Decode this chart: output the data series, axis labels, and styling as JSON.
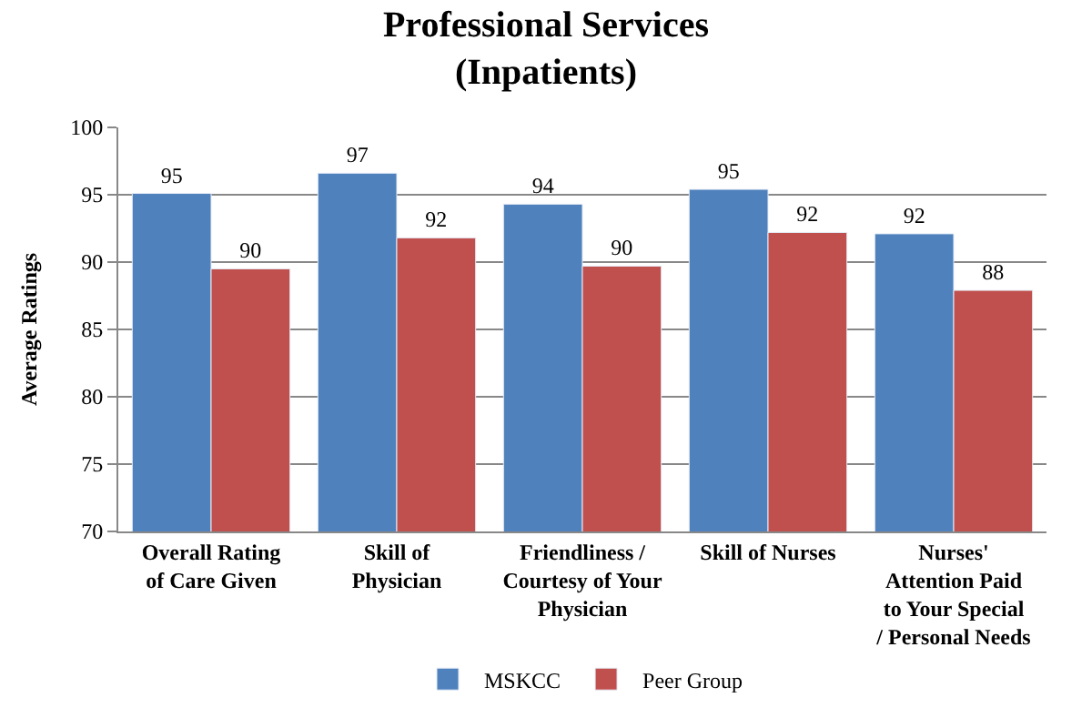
{
  "chart_data": {
    "type": "bar",
    "title": "Professional Services\n(Inpatients)",
    "ylabel": "Average Ratings",
    "categories": [
      "Overall Rating of Care Given",
      "Skill of Physician",
      "Friendliness / Courtesy of Your Physician",
      "Skill of Nurses",
      "Nurses' Attention Paid to Your Special / Personal Needs"
    ],
    "series": [
      {
        "name": "MSKCC",
        "color": "#4f81bd",
        "values": [
          95.1,
          96.6,
          94.3,
          95.4,
          92.1
        ],
        "value_labels": [
          "95",
          "97",
          "94",
          "95",
          "92"
        ]
      },
      {
        "name": "Peer Group",
        "color": "#c0504d",
        "values": [
          89.5,
          91.8,
          89.7,
          92.2,
          87.9
        ],
        "value_labels": [
          "90",
          "92",
          "90",
          "92",
          "88"
        ]
      }
    ],
    "ylim": [
      70,
      100
    ],
    "yticks": [
      70,
      75,
      80,
      85,
      90,
      95,
      100
    ],
    "grid": "y",
    "legend": "bottom"
  }
}
